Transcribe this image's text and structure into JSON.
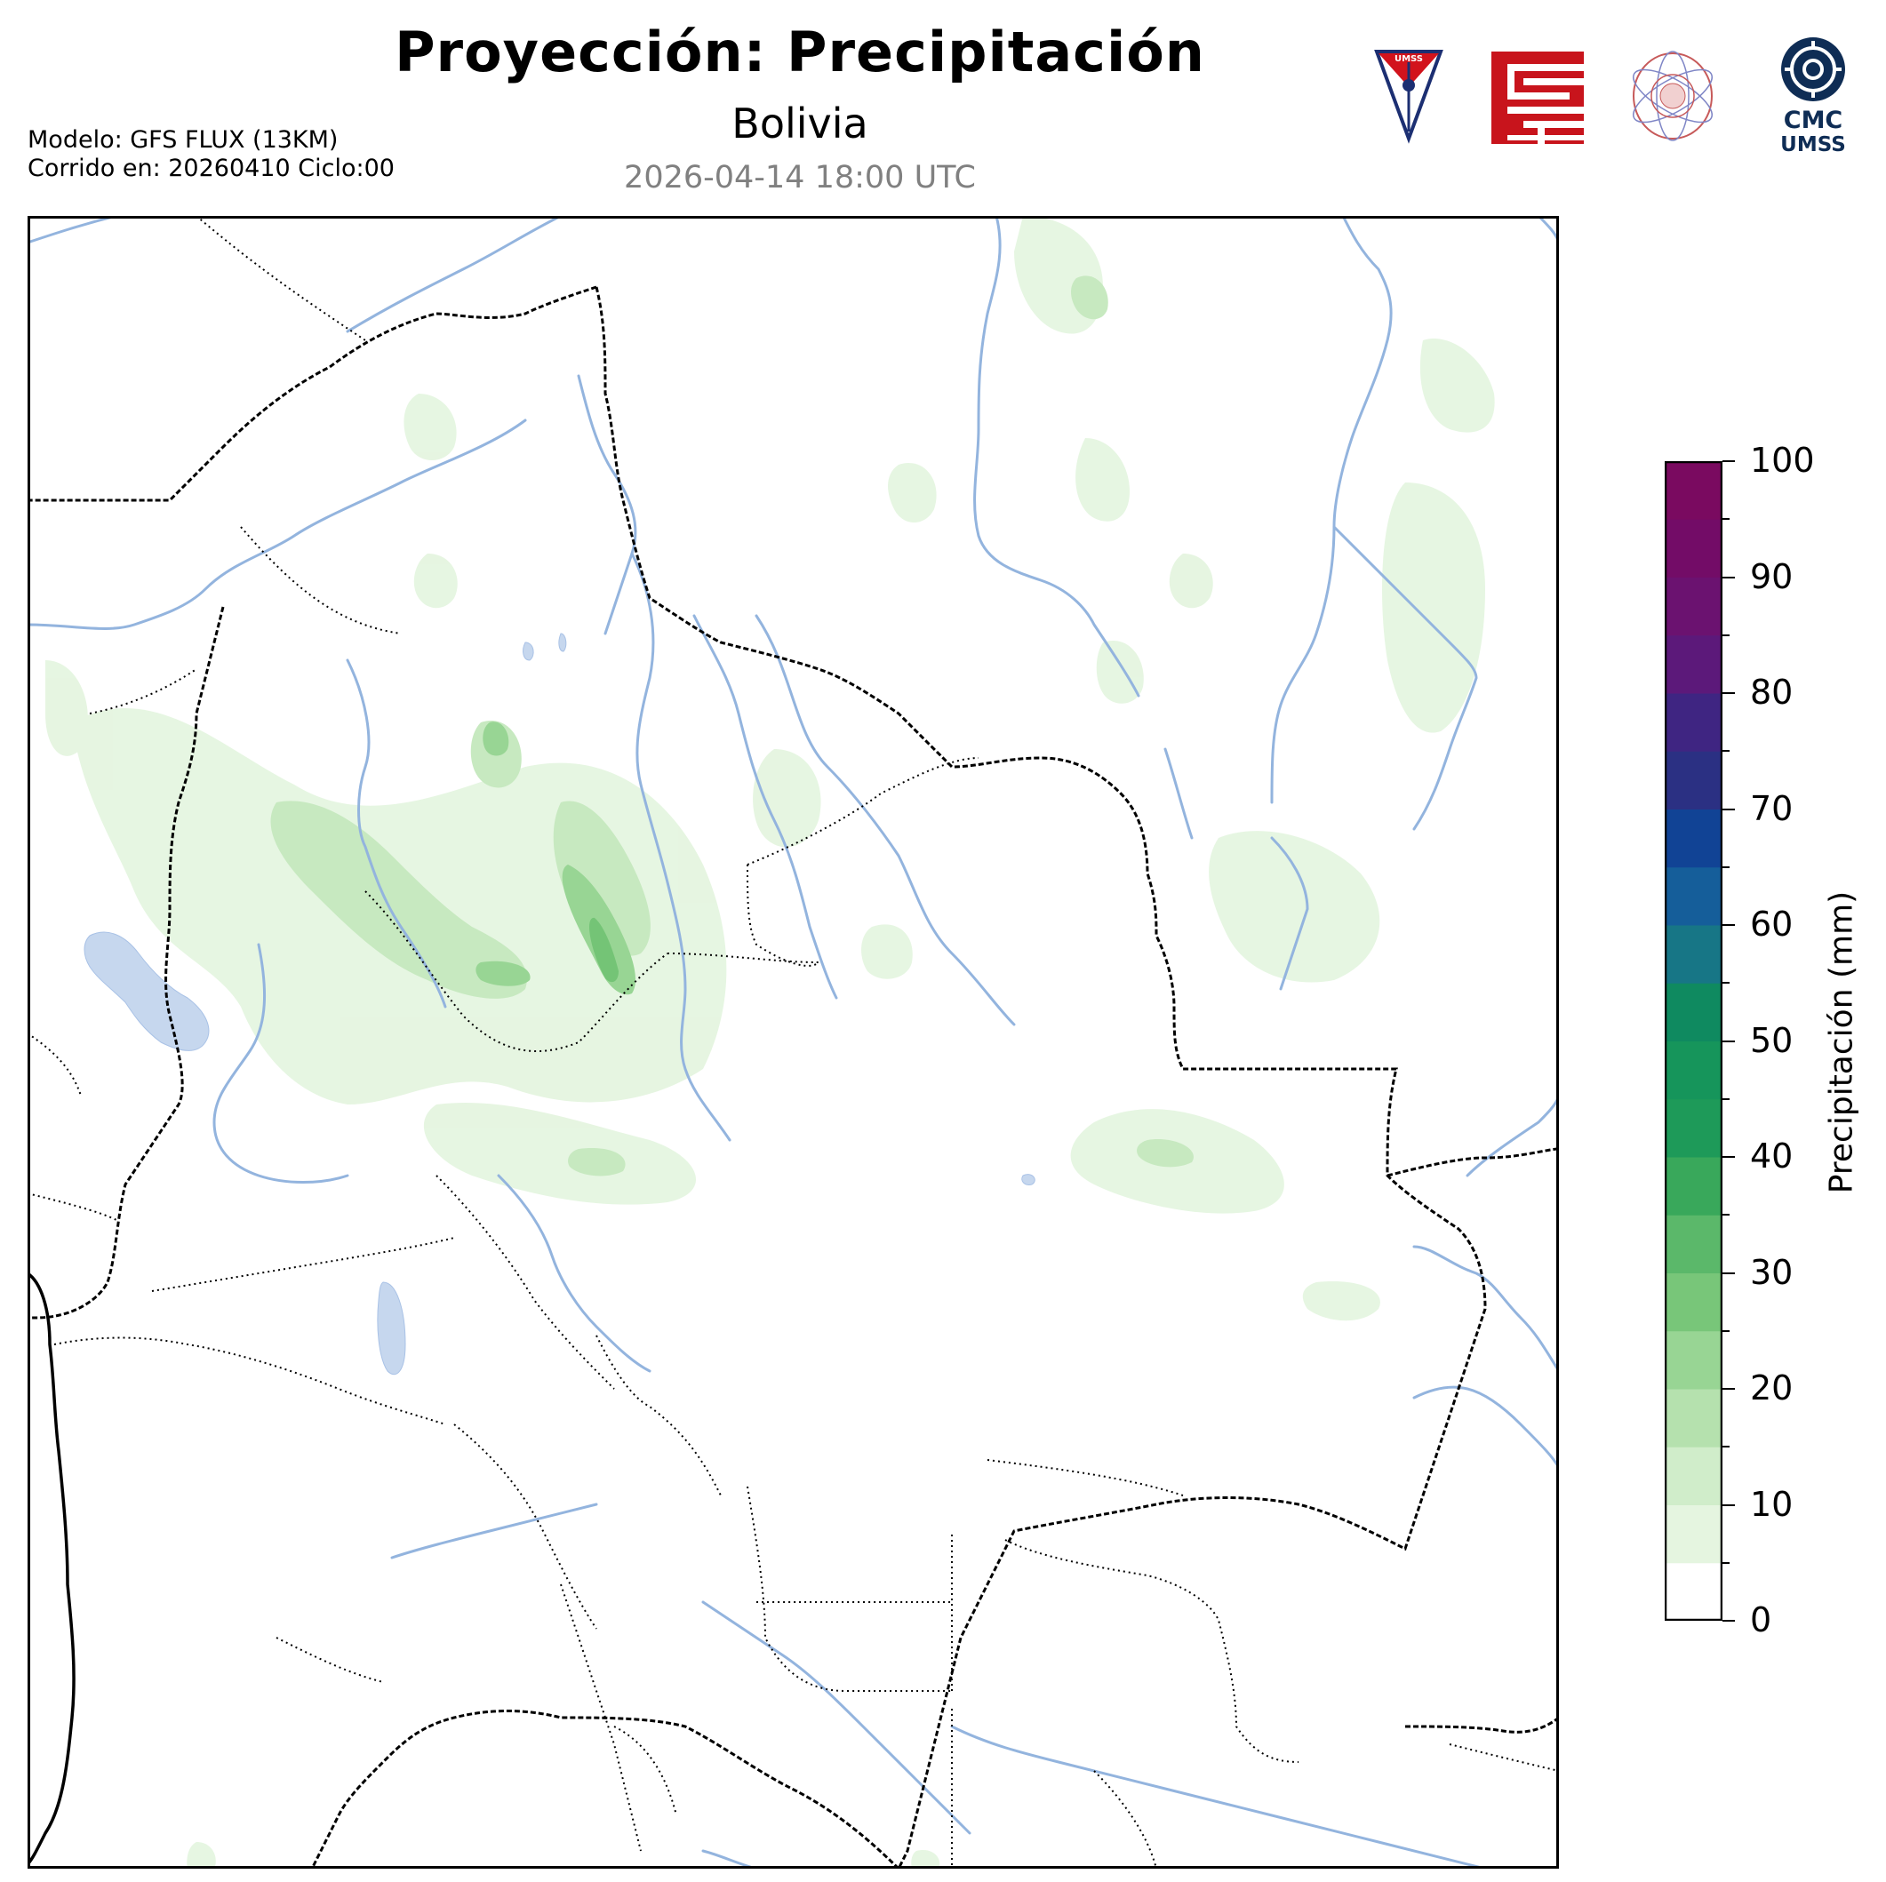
{
  "header": {
    "title": "Proyección: Precipitación",
    "subtitle": "Bolivia",
    "datetime": "2026-04-14 18:00 UTC",
    "model_line": "Modelo: GFS FLUX (13KM)",
    "run_line": "Corrido en: 20260410 Ciclo:00"
  },
  "logos": {
    "umss_shield_text": "UMSS",
    "cmc_line1": "CMC",
    "cmc_line2": "UMSS",
    "icons": [
      "umss-shield-icon",
      "fcyt-logo-icon",
      "fisica-department-seal-icon",
      "cmc-umss-logo-icon"
    ]
  },
  "colorbar": {
    "label": "Precipitación (mm)",
    "ticks": [
      0,
      10,
      20,
      30,
      40,
      50,
      60,
      70,
      80,
      90,
      100
    ],
    "range": [
      0,
      100
    ],
    "step": 5,
    "colors": [
      "#ffffff",
      "#e5f5e0",
      "#d0edca",
      "#b5e1ae",
      "#98d594",
      "#78c679",
      "#5bb86a",
      "#39a85b",
      "#1e9a59",
      "#16955b",
      "#0f8a60",
      "#177686",
      "#155e9a",
      "#114395",
      "#2b3083",
      "#3f2582",
      "#5c197a",
      "#6b1270",
      "#730c67",
      "#7a0a60"
    ]
  },
  "colors": {
    "rivers": "#93b4de",
    "lakes": "#c6d7ee",
    "borders": "#000000",
    "rain_light": "#e5f5e0",
    "rain_mid": "#c7e9c0",
    "rain_heavy": "#74c476"
  }
}
